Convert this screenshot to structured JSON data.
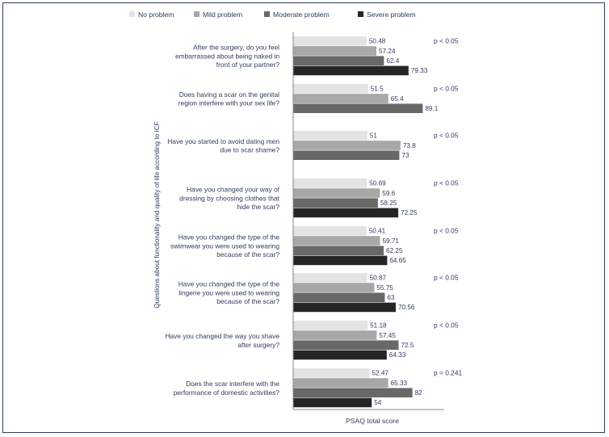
{
  "chart_data": {
    "type": "bar",
    "orientation": "horizontal",
    "title": "",
    "xlabel": "PSAQ total score",
    "ylabel": "Questions about functionality and quality of life according to ICF",
    "xlim": [
      0,
      110
    ],
    "grid": false,
    "legend_position": "top",
    "legend": [
      {
        "name": "No problem",
        "color": "#e3e3e3"
      },
      {
        "name": "Mild problem",
        "color": "#a7a7a7"
      },
      {
        "name": "Moderate problem",
        "color": "#686868"
      },
      {
        "name": "Severe problem",
        "color": "#252525"
      }
    ],
    "categories": [
      {
        "lines": [
          "After the surgery, do you feel",
          "embarrassed about being naked in",
          "front of your partner?"
        ],
        "p_value": "p < 0.05",
        "bars": [
          {
            "series": 0,
            "value": 50.48,
            "label": "50.48"
          },
          {
            "series": 1,
            "value": 57.24,
            "label": "57.24"
          },
          {
            "series": 2,
            "value": 62.4,
            "label": "62.4"
          },
          {
            "series": 3,
            "value": 79.33,
            "label": "79.33"
          }
        ]
      },
      {
        "lines": [
          "Does having a scar on the genital",
          "region interfere with your sex life?"
        ],
        "p_value": "p < 0.05",
        "bars": [
          {
            "series": 0,
            "value": 51.5,
            "label": "51.5"
          },
          {
            "series": 1,
            "value": 65.4,
            "label": "65.4"
          },
          {
            "series": 2,
            "value": 89.1,
            "label": "89.1"
          }
        ]
      },
      {
        "lines": [
          "Have you started to avoid dating men",
          "due to scar shame?"
        ],
        "p_value": "p < 0.05",
        "bars": [
          {
            "series": 0,
            "value": 51,
            "label": "51"
          },
          {
            "series": 1,
            "value": 73.8,
            "label": "73.8"
          },
          {
            "series": 2,
            "value": 73,
            "label": "73"
          }
        ]
      },
      {
        "lines": [
          "Have you changed your way of",
          "dressing by choosing clothes that",
          "hide the scar?"
        ],
        "p_value": "p < 0.05",
        "bars": [
          {
            "series": 0,
            "value": 50.69,
            "label": "50.69"
          },
          {
            "series": 1,
            "value": 59.6,
            "label": "59.6"
          },
          {
            "series": 2,
            "value": 58.25,
            "label": "58.25"
          },
          {
            "series": 3,
            "value": 72.25,
            "label": "72.25"
          }
        ]
      },
      {
        "lines": [
          "Have you changed the type of the",
          "swimwear you were used to wearing",
          "because of the scar?"
        ],
        "p_value": "p < 0.05",
        "bars": [
          {
            "series": 0,
            "value": 50.41,
            "label": "50.41"
          },
          {
            "series": 1,
            "value": 59.71,
            "label": "59.71"
          },
          {
            "series": 2,
            "value": 62.25,
            "label": "62.25"
          },
          {
            "series": 3,
            "value": 64.65,
            "label": "64.65"
          }
        ]
      },
      {
        "lines": [
          "Have you changed the type of the",
          "lingerie you were used to wearing",
          "because of the scar?"
        ],
        "p_value": "p < 0.05",
        "bars": [
          {
            "series": 0,
            "value": 50.87,
            "label": "50.87"
          },
          {
            "series": 1,
            "value": 55.75,
            "label": "55.75"
          },
          {
            "series": 2,
            "value": 63,
            "label": "63"
          },
          {
            "series": 3,
            "value": 70.56,
            "label": "70.56"
          }
        ]
      },
      {
        "lines": [
          "Have you changed the way you shave",
          "after surgery?"
        ],
        "p_value": "p < 0.05",
        "bars": [
          {
            "series": 0,
            "value": 51.18,
            "label": "51.18"
          },
          {
            "series": 1,
            "value": 57.45,
            "label": "57.45"
          },
          {
            "series": 2,
            "value": 72.5,
            "label": "72.5"
          },
          {
            "series": 3,
            "value": 64.33,
            "label": "64.33"
          }
        ]
      },
      {
        "lines": [
          "Does the scar interfere with the",
          "performance of domestic activities?"
        ],
        "p_value": "p = 0.241",
        "bars": [
          {
            "series": 0,
            "value": 52.47,
            "label": "52.47"
          },
          {
            "series": 1,
            "value": 65.33,
            "label": "65.33"
          },
          {
            "series": 2,
            "value": 82,
            "label": "82"
          },
          {
            "series": 3,
            "value": 54,
            "label": "54"
          }
        ]
      }
    ]
  }
}
